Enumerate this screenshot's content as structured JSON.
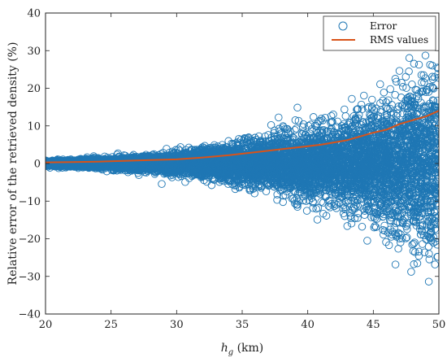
{
  "chart_data": {
    "type": "scatter",
    "xlabel": {
      "main": "h",
      "sub": "g",
      "unit": " (km)"
    },
    "ylabel": "Relative error of the retrieved density (%)",
    "xlim": [
      20,
      50
    ],
    "ylim": [
      -40,
      40
    ],
    "xticks": [
      "20",
      "25",
      "30",
      "35",
      "40",
      "45",
      "50"
    ],
    "yticks": [
      "−40",
      "−30",
      "−20",
      "−10",
      "0",
      "10",
      "20",
      "30",
      "40"
    ],
    "grid": false,
    "legend_position": "top-right",
    "colors": {
      "error": "#1f77b4",
      "rms": "#d95319",
      "axes": "#222222"
    },
    "series": [
      {
        "name": "Error",
        "kind": "scatter",
        "marker": "open-circle",
        "approx_n_points": 9000,
        "spread_envelope": {
          "x": [
            20,
            22,
            25,
            28,
            30,
            33,
            35,
            38,
            40,
            42,
            44,
            46,
            48,
            50
          ],
          "sigma": [
            0.3,
            0.45,
            0.7,
            1.0,
            1.3,
            2.0,
            2.6,
            3.5,
            4.2,
            5.0,
            6.3,
            8.0,
            10.0,
            12.0
          ]
        }
      },
      {
        "name": "RMS values",
        "kind": "line",
        "x": [
          20,
          22,
          24,
          26,
          28,
          30,
          32,
          34,
          36,
          38,
          40,
          41,
          42,
          43,
          44,
          45,
          46,
          47,
          48,
          49,
          50
        ],
        "y": [
          0.3,
          0.4,
          0.5,
          0.7,
          0.9,
          1.1,
          1.6,
          2.2,
          3.0,
          3.8,
          4.6,
          5.0,
          5.6,
          6.2,
          7.2,
          8.2,
          9.0,
          10.5,
          11.5,
          12.5,
          14.0
        ]
      }
    ]
  }
}
